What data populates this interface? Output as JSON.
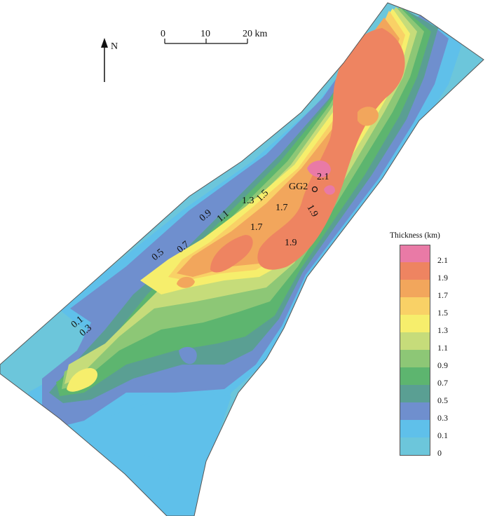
{
  "north_label": "N",
  "scale_bar": {
    "ticks": [
      "0",
      "10",
      "20 km"
    ]
  },
  "well_label": "GG2",
  "contour_labels": [
    "2.1",
    "1.9",
    "1.9",
    "1.7",
    "1.7",
    "1.5",
    "1.3",
    "1.1",
    "0.9",
    "0.7",
    "0.5",
    "0.3",
    "0.1"
  ],
  "legend": {
    "title": "Thickness (km)",
    "entries": [
      {
        "label": "2.1",
        "color": "#e97aa6"
      },
      {
        "label": "1.9",
        "color": "#ee8461"
      },
      {
        "label": "1.7",
        "color": "#f2a65c"
      },
      {
        "label": "1.5",
        "color": "#f9d166"
      },
      {
        "label": "1.3",
        "color": "#f6ee6c"
      },
      {
        "label": "1.1",
        "color": "#c6dc7a"
      },
      {
        "label": "0.9",
        "color": "#8dc776"
      },
      {
        "label": "0.7",
        "color": "#5db56f"
      },
      {
        "label": "0.5",
        "color": "#5a9f93"
      },
      {
        "label": "0.3",
        "color": "#6f8fce"
      },
      {
        "label": "0.1",
        "color": "#5fc0ea"
      },
      {
        "label": "0",
        "color": "#6cc6db"
      }
    ]
  }
}
